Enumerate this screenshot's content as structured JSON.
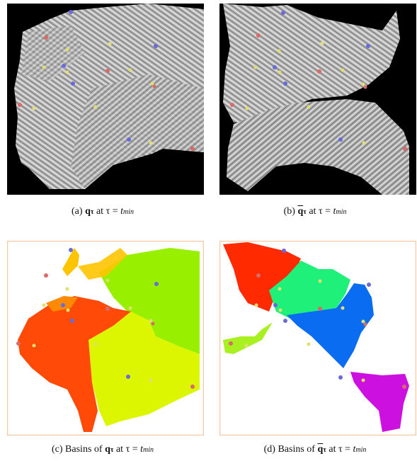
{
  "figure": {
    "panels": [
      {
        "id": "a",
        "caption": {
          "prefix": "(a) ",
          "field": "q",
          "field_bar": false,
          "sub": "τ",
          "mid": " at τ = ",
          "var": "t",
          "var_sub": "min"
        },
        "style": "streamline",
        "background": "#000000",
        "field_color": "#b9b9b9"
      },
      {
        "id": "b",
        "caption": {
          "prefix": "(b) ",
          "field": "q",
          "field_bar": true,
          "sub": "τ",
          "mid": " at τ = ",
          "var": "t",
          "var_sub": "min"
        },
        "style": "streamline",
        "background": "#000000",
        "field_color": "#b9b9b9"
      },
      {
        "id": "c",
        "caption": {
          "prefix": "(c) Basins of ",
          "field": "q",
          "field_bar": false,
          "sub": "τ",
          "mid": " at τ = ",
          "var": "t",
          "var_sub": "min"
        },
        "style": "basins",
        "background": "#ffffff",
        "border_color": "#f3c9a6",
        "basin_colors": [
          "#ff4a08",
          "#98f000",
          "#dcf500",
          "#ffc400",
          "#ff8a00"
        ]
      },
      {
        "id": "d",
        "caption": {
          "prefix": "(d) Basins of ",
          "field": "q",
          "field_bar": true,
          "sub": "τ",
          "mid": " at τ = ",
          "var": "t",
          "var_sub": "min"
        },
        "style": "basins",
        "background": "#ffffff",
        "border_color": "#f3c9a6",
        "basin_colors": [
          "#ff2a00",
          "#1ff07a",
          "#0a6cf0",
          "#cc10e0",
          "#a8f020"
        ]
      }
    ],
    "critical_point_colors": {
      "sink": "#6a6ad8",
      "source": "#d86a6a",
      "saddle": "#e0e070"
    }
  }
}
